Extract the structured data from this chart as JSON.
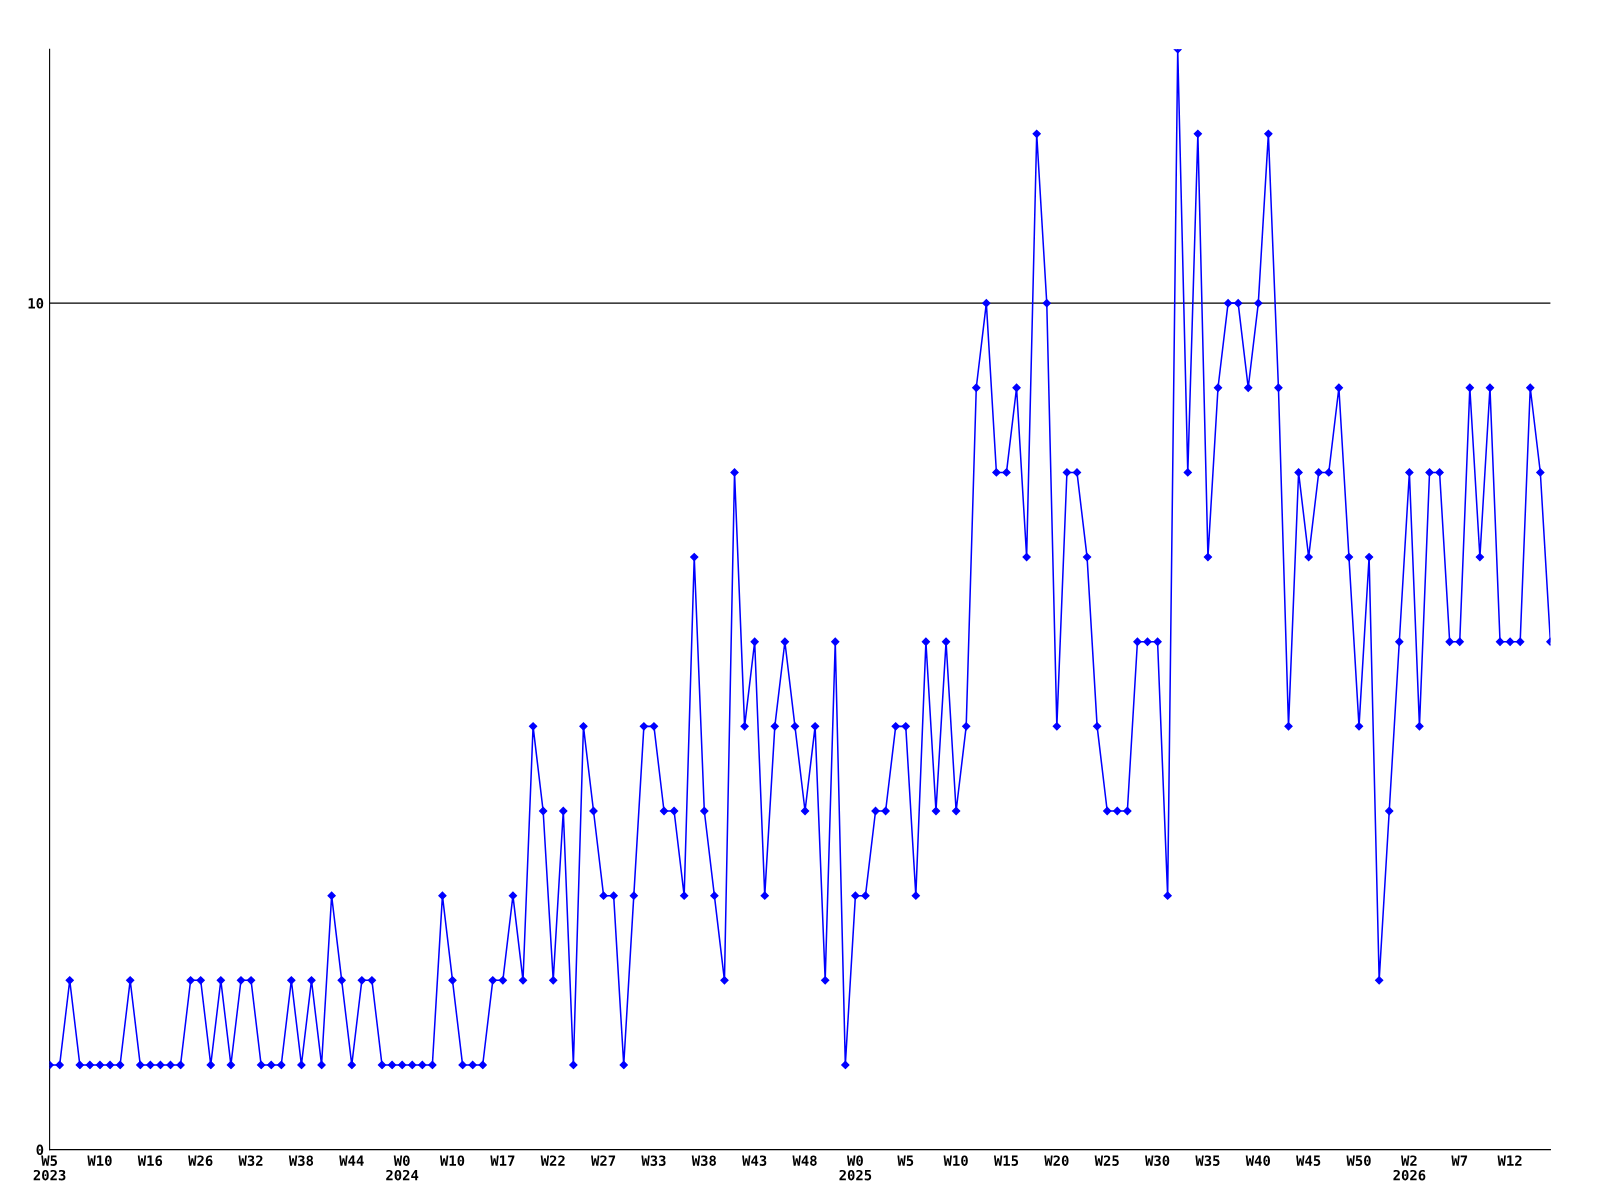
{
  "chart_data": {
    "type": "line",
    "categories": [
      "W5\n2023",
      null,
      null,
      null,
      null,
      "W10",
      null,
      null,
      null,
      null,
      "W16",
      null,
      null,
      null,
      null,
      "W26",
      null,
      null,
      null,
      null,
      "W32",
      null,
      null,
      null,
      null,
      "W38",
      null,
      null,
      null,
      null,
      "W44",
      null,
      null,
      null,
      null,
      "W0\n2024",
      null,
      null,
      null,
      null,
      "W10",
      null,
      null,
      null,
      null,
      "W17",
      null,
      null,
      null,
      null,
      "W22",
      null,
      null,
      null,
      null,
      "W27",
      null,
      null,
      null,
      null,
      "W33",
      null,
      null,
      null,
      null,
      "W38",
      null,
      null,
      null,
      null,
      "W43",
      null,
      null,
      null,
      null,
      "W48",
      null,
      null,
      null,
      null,
      "W0\n2025",
      null,
      null,
      null,
      null,
      "W5",
      null,
      null,
      null,
      null,
      "W10",
      null,
      null,
      null,
      null,
      "W15",
      null,
      null,
      null,
      null,
      "W20",
      null,
      null,
      null,
      null,
      "W25",
      null,
      null,
      null,
      null,
      "W30",
      null,
      null,
      null,
      null,
      "W35",
      null,
      null,
      null,
      null,
      "W40",
      null,
      null,
      null,
      null,
      "W45",
      null,
      null,
      null,
      null,
      "W50",
      null,
      null,
      null,
      null,
      "W2\n2026",
      null,
      null,
      null,
      null,
      "W7",
      null,
      null,
      null,
      null,
      "W12",
      null,
      null,
      null,
      null
    ],
    "series": [
      {
        "color": "#0000ff",
        "values": [
          1,
          1,
          2,
          1,
          1,
          1,
          1,
          1,
          2,
          1,
          1,
          1,
          1,
          1,
          2,
          2,
          1,
          2,
          1,
          2,
          2,
          1,
          1,
          1,
          2,
          1,
          2,
          1,
          3,
          2,
          1,
          2,
          2,
          1,
          1,
          1,
          1,
          1,
          1,
          3,
          2,
          1,
          1,
          1,
          2,
          2,
          3,
          2,
          5,
          4,
          2,
          4,
          1,
          5,
          4,
          3,
          3,
          1,
          3,
          5,
          5,
          4,
          4,
          3,
          7,
          4,
          3,
          2,
          8,
          5,
          6,
          3,
          5,
          6,
          5,
          4,
          5,
          2,
          6,
          1,
          3,
          3,
          4,
          4,
          5,
          5,
          3,
          6,
          4,
          6,
          4,
          5,
          9,
          10,
          8,
          8,
          9,
          7,
          12,
          10,
          5,
          8,
          8,
          7,
          5,
          4,
          4,
          4,
          6,
          6,
          6,
          3,
          13,
          8,
          12,
          7,
          9,
          10,
          10,
          9,
          10,
          12,
          9,
          5,
          8,
          7,
          8,
          8,
          9,
          7,
          5,
          7,
          2,
          4,
          6,
          8,
          5,
          8,
          8,
          6,
          6,
          9,
          7,
          9,
          6,
          6,
          6,
          9,
          8,
          6
        ]
      }
    ],
    "ylim": [
      0,
      13
    ],
    "yticks": [
      0,
      10
    ],
    "grid": "y",
    "marker": "diamond",
    "line_style": "solid"
  }
}
